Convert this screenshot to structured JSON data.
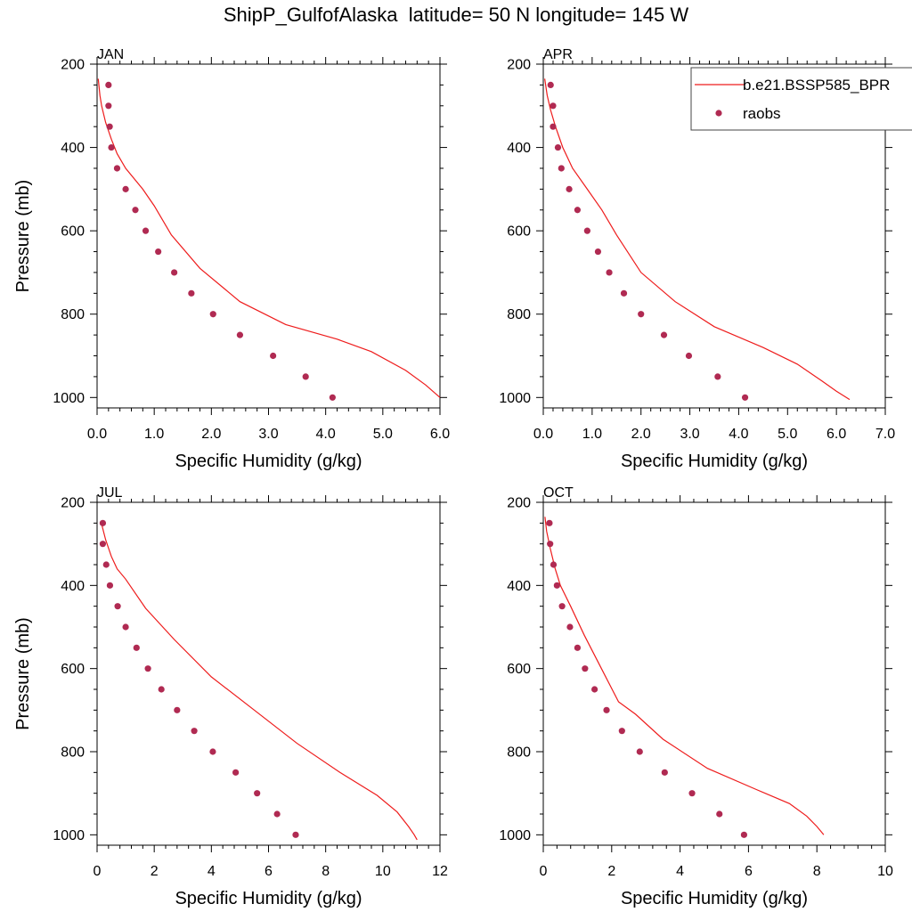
{
  "title": "ShipP_GulfofAlaska  latitude= 50 N longitude= 145 W",
  "legend": {
    "model_label": "b.e21.BSSP585_BPR",
    "obs_label": "raobs",
    "placement": "top-right"
  },
  "colors": {
    "model_line": "#ee1c1c",
    "obs_marker": "#b02a52",
    "axis": "#000000"
  },
  "chart_data": [
    {
      "type": "line",
      "panel": "JAN",
      "xlabel": "Specific Humidity (g/kg)",
      "ylabel": "Pressure (mb)",
      "xlim": [
        0,
        6
      ],
      "ylim": [
        200,
        1025
      ],
      "y_inverted": true,
      "xticks": [
        "0.0",
        "1.0",
        "2.0",
        "3.0",
        "4.0",
        "5.0",
        "6.0"
      ],
      "xtick_values": [
        0,
        1,
        2,
        3,
        4,
        5,
        6
      ],
      "yticks": [
        "200",
        "400",
        "600",
        "800",
        "1000"
      ],
      "series": [
        {
          "name": "b.e21.BSSP585_BPR",
          "kind": "line",
          "x": [
            0.02,
            0.05,
            0.08,
            0.15,
            0.25,
            0.35,
            0.5,
            0.8,
            1.0,
            1.3,
            1.8,
            2.5,
            3.3,
            4.2,
            4.8,
            5.4,
            5.75,
            6.0
          ],
          "y": [
            235,
            275,
            300,
            340,
            380,
            415,
            450,
            500,
            540,
            610,
            690,
            770,
            825,
            860,
            890,
            935,
            970,
            1000
          ]
        },
        {
          "name": "raobs",
          "kind": "scatter",
          "x": [
            0.2,
            0.2,
            0.22,
            0.25,
            0.35,
            0.5,
            0.67,
            0.85,
            1.07,
            1.35,
            1.65,
            2.03,
            2.5,
            3.08,
            3.65,
            4.12
          ],
          "y": [
            250,
            300,
            350,
            400,
            450,
            500,
            550,
            600,
            650,
            700,
            750,
            800,
            850,
            900,
            950,
            1000
          ]
        }
      ]
    },
    {
      "type": "line",
      "panel": "APR",
      "xlabel": "Specific Humidity (g/kg)",
      "ylabel": "",
      "xlim": [
        0,
        7
      ],
      "ylim": [
        200,
        1025
      ],
      "y_inverted": true,
      "xticks": [
        "0.0",
        "1.0",
        "2.0",
        "3.0",
        "4.0",
        "5.0",
        "6.0",
        "7.0"
      ],
      "xtick_values": [
        0,
        1,
        2,
        3,
        4,
        5,
        6,
        7
      ],
      "yticks": [
        "200",
        "400",
        "600",
        "800",
        "1000"
      ],
      "series": [
        {
          "name": "b.e21.BSSP585_BPR",
          "kind": "line",
          "x": [
            0.03,
            0.08,
            0.15,
            0.25,
            0.4,
            0.6,
            0.9,
            1.2,
            1.5,
            2.0,
            2.7,
            3.5,
            4.5,
            5.2,
            5.7,
            6.0,
            6.27
          ],
          "y": [
            235,
            275,
            310,
            350,
            400,
            450,
            500,
            550,
            610,
            700,
            770,
            830,
            880,
            920,
            960,
            985,
            1005
          ]
        },
        {
          "name": "raobs",
          "kind": "scatter",
          "x": [
            0.15,
            0.2,
            0.2,
            0.3,
            0.37,
            0.53,
            0.7,
            0.9,
            1.12,
            1.35,
            1.65,
            2.0,
            2.47,
            2.98,
            3.57,
            4.13
          ],
          "y": [
            250,
            300,
            350,
            400,
            450,
            500,
            550,
            600,
            650,
            700,
            750,
            800,
            850,
            900,
            950,
            1000
          ]
        }
      ]
    },
    {
      "type": "line",
      "panel": "JUL",
      "xlabel": "Specific Humidity (g/kg)",
      "ylabel": "Pressure (mb)",
      "xlim": [
        0,
        12
      ],
      "ylim": [
        200,
        1025
      ],
      "y_inverted": true,
      "xticks": [
        "0",
        "2",
        "4",
        "6",
        "8",
        "10",
        "12"
      ],
      "xtick_values": [
        0,
        2,
        4,
        6,
        8,
        10,
        12
      ],
      "yticks": [
        "200",
        "400",
        "600",
        "800",
        "1000"
      ],
      "series": [
        {
          "name": "b.e21.BSSP585_BPR",
          "kind": "line",
          "x": [
            0.15,
            0.3,
            0.5,
            0.7,
            1.0,
            1.7,
            2.7,
            4.0,
            5.5,
            7.0,
            8.5,
            9.8,
            10.5,
            10.9,
            11.1,
            11.2
          ],
          "y": [
            250,
            290,
            330,
            360,
            385,
            455,
            530,
            620,
            700,
            780,
            850,
            905,
            945,
            980,
            1000,
            1012
          ]
        },
        {
          "name": "raobs",
          "kind": "scatter",
          "x": [
            0.2,
            0.2,
            0.32,
            0.45,
            0.72,
            1.0,
            1.38,
            1.78,
            2.25,
            2.8,
            3.4,
            4.05,
            4.85,
            5.6,
            6.3,
            6.95
          ],
          "y": [
            250,
            300,
            350,
            400,
            450,
            500,
            550,
            600,
            650,
            700,
            750,
            800,
            850,
            900,
            950,
            1000
          ]
        }
      ]
    },
    {
      "type": "line",
      "panel": "OCT",
      "xlabel": "Specific Humidity (g/kg)",
      "ylabel": "",
      "xlim": [
        0,
        10
      ],
      "ylim": [
        200,
        1025
      ],
      "y_inverted": true,
      "xticks": [
        "0",
        "2",
        "4",
        "6",
        "8",
        "10"
      ],
      "xtick_values": [
        0,
        2,
        4,
        6,
        8,
        10
      ],
      "yticks": [
        "200",
        "400",
        "600",
        "800",
        "1000"
      ],
      "series": [
        {
          "name": "b.e21.BSSP585_BPR",
          "kind": "line",
          "x": [
            0.05,
            0.1,
            0.2,
            0.35,
            0.5,
            0.8,
            1.2,
            1.7,
            2.2,
            2.7,
            3.5,
            4.8,
            6.2,
            7.2,
            7.7,
            8.0,
            8.2
          ],
          "y": [
            235,
            270,
            310,
            360,
            400,
            450,
            520,
            600,
            680,
            710,
            770,
            840,
            890,
            925,
            955,
            980,
            1000
          ]
        },
        {
          "name": "raobs",
          "kind": "scatter",
          "x": [
            0.18,
            0.2,
            0.3,
            0.4,
            0.55,
            0.78,
            1.0,
            1.22,
            1.5,
            1.85,
            2.3,
            2.82,
            3.55,
            4.35,
            5.15,
            5.87
          ],
          "y": [
            250,
            300,
            350,
            400,
            450,
            500,
            550,
            600,
            650,
            700,
            750,
            800,
            850,
            900,
            950,
            1000
          ]
        }
      ]
    }
  ]
}
